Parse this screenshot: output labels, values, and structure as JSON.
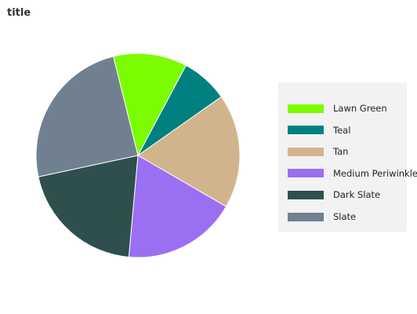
{
  "chart_data": {
    "type": "pie",
    "title": "title",
    "slices": [
      {
        "label": "Lawn Green",
        "value": 11,
        "color": "#7cfc00"
      },
      {
        "label": "Teal",
        "value": 7,
        "color": "#008080"
      },
      {
        "label": "Tan",
        "value": 17,
        "color": "#d2b48c"
      },
      {
        "label": "Medium Periwinkle",
        "value": 17,
        "color": "#9b6ff2"
      },
      {
        "label": "Dark Slate",
        "value": 19,
        "color": "#2f4f4f"
      },
      {
        "label": "Slate",
        "value": 23,
        "color": "#708090"
      }
    ],
    "start_angle_deg": -14,
    "legend_position": "right"
  }
}
